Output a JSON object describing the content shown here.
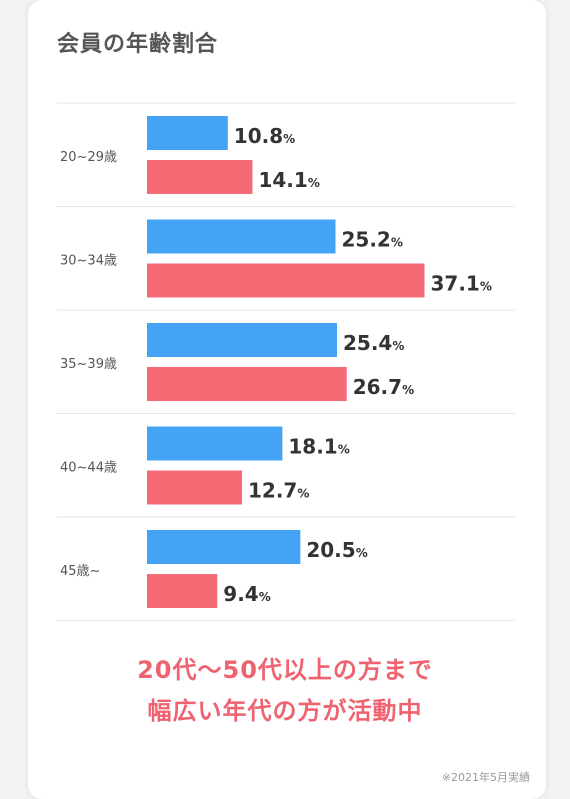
{
  "colors": {
    "series_a": "#44a3f5",
    "series_b": "#f56b75",
    "accent": "#ef6270"
  },
  "chart_data": {
    "type": "bar",
    "orientation": "horizontal",
    "title": "会員の年齢割合",
    "categories": [
      "20~29歳",
      "30~34歳",
      "35~39歳",
      "40~44歳",
      "45歳~"
    ],
    "series": [
      {
        "values": [
          10.8,
          25.2,
          25.4,
          18.1,
          20.5
        ],
        "color": "#44a3f5"
      },
      {
        "values": [
          14.1,
          37.1,
          26.7,
          12.7,
          9.4
        ],
        "color": "#f56b75"
      }
    ],
    "unit": "%",
    "grid": true
  },
  "tagline": {
    "line1": "20代〜50代以上の方まで",
    "line2": "幅広い年代の方が活動中"
  },
  "note": "※2021年5月実績"
}
